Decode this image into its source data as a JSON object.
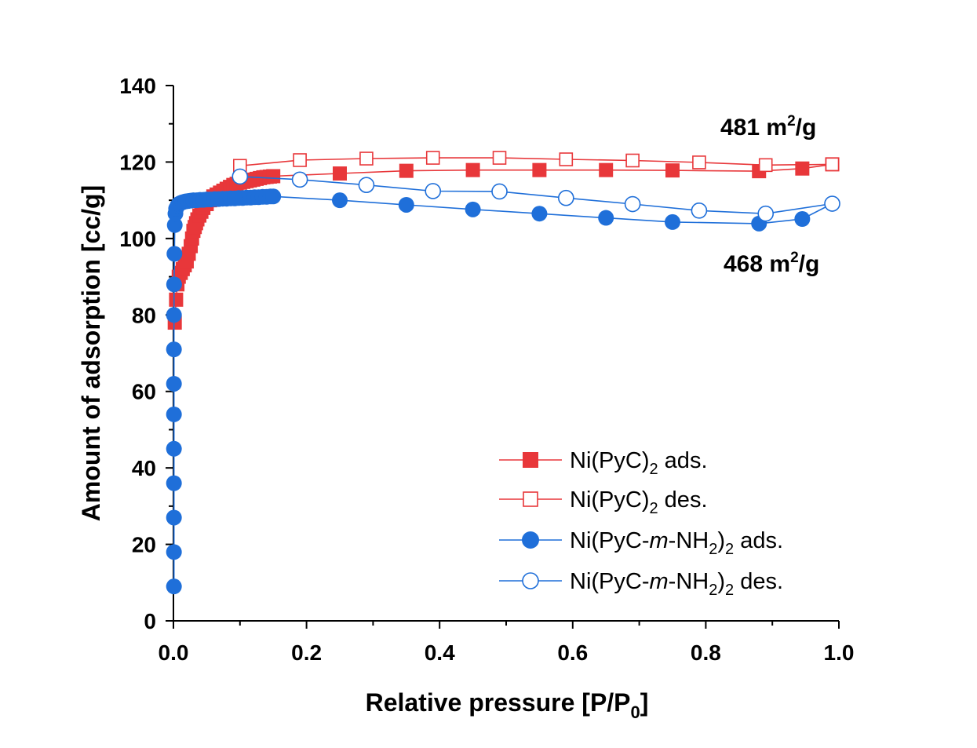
{
  "chart_data": {
    "type": "scatter",
    "xlabel": "Relative pressure [P/P0]",
    "ylabel": "Amount of adsorption [cc/g]",
    "xlim": [
      0.0,
      1.0
    ],
    "ylim": [
      0,
      140
    ],
    "x_ticks": [
      "0.0",
      "0.2",
      "0.4",
      "0.6",
      "0.8",
      "1.0"
    ],
    "y_ticks": [
      "0",
      "20",
      "40",
      "60",
      "80",
      "100",
      "120",
      "140"
    ],
    "grid": false,
    "legend_position": "bottom-right",
    "annotations": [
      {
        "text": "481 m2/g",
        "number": "481",
        "unit": "m",
        "sup": "2",
        "tail": "/g"
      },
      {
        "text": "468 m2/g",
        "number": "468",
        "unit": "m",
        "sup": "2",
        "tail": "/g"
      }
    ],
    "series": [
      {
        "name": "Ni(PyC)2 ads.",
        "legend": {
          "pre": "Ni(PyC)",
          "sub": "2",
          "post": " ads."
        },
        "marker": "square-filled",
        "color": "#E8373A",
        "x": [
          0.002,
          0.004,
          0.006,
          0.008,
          0.011,
          0.014,
          0.017,
          0.02,
          0.023,
          0.026,
          0.028,
          0.03,
          0.032,
          0.034,
          0.036,
          0.039,
          0.042,
          0.045,
          0.05,
          0.055,
          0.06,
          0.065,
          0.07,
          0.075,
          0.08,
          0.085,
          0.09,
          0.095,
          0.1,
          0.105,
          0.11,
          0.115,
          0.12,
          0.125,
          0.13,
          0.135,
          0.14,
          0.145,
          0.15,
          0.25,
          0.35,
          0.45,
          0.55,
          0.65,
          0.75,
          0.88,
          0.945,
          0.99
        ],
        "y": [
          78,
          84,
          88,
          90,
          91,
          92,
          93,
          94,
          96,
          98,
          100,
          102,
          103,
          104,
          105,
          106,
          107,
          108,
          109,
          110,
          111,
          111.5,
          112,
          112.5,
          113,
          113.5,
          114,
          114.3,
          114.6,
          114.8,
          115,
          115.2,
          115.4,
          115.6,
          115.8,
          116,
          116.1,
          116.2,
          116.3,
          117,
          117.7,
          117.9,
          117.9,
          117.9,
          117.8,
          117.6,
          118.3,
          119.4
        ]
      },
      {
        "name": "Ni(PyC)2 des.",
        "legend": {
          "pre": "Ni(PyC)",
          "sub": "2",
          "post": " des."
        },
        "marker": "square-open",
        "color": "#E8373A",
        "x": [
          0.99,
          0.89,
          0.79,
          0.69,
          0.59,
          0.49,
          0.39,
          0.29,
          0.19,
          0.1
        ],
        "y": [
          119.4,
          119.2,
          119.9,
          120.4,
          120.7,
          121.1,
          121.1,
          120.9,
          120.5,
          119
        ]
      },
      {
        "name": "Ni(PyC-m-NH2)2 ads.",
        "legend": {
          "pre": "Ni(PyC-",
          "ital": "m",
          "mid": "-NH",
          "sub1": "2",
          "mid2": ")",
          "sub2": "2",
          "post": " ads."
        },
        "marker": "circle-filled",
        "color": "#1F6FD9",
        "x": [
          0.0008,
          0.0008,
          0.0008,
          0.0008,
          0.0008,
          0.0008,
          0.0008,
          0.0008,
          0.0008,
          0.001,
          0.0015,
          0.002,
          0.003,
          0.004,
          0.006,
          0.008,
          0.011,
          0.014,
          0.018,
          0.022,
          0.026,
          0.03,
          0.035,
          0.04,
          0.045,
          0.05,
          0.056,
          0.062,
          0.068,
          0.074,
          0.08,
          0.086,
          0.092,
          0.098,
          0.104,
          0.11,
          0.116,
          0.122,
          0.128,
          0.134,
          0.14,
          0.146,
          0.15,
          0.25,
          0.35,
          0.45,
          0.55,
          0.65,
          0.75,
          0.88,
          0.945,
          0.99
        ],
        "y": [
          9,
          18,
          27,
          36,
          45,
          54,
          62,
          71,
          80,
          88,
          96,
          103.5,
          106.5,
          107.8,
          108.5,
          109,
          109.3,
          109.5,
          109.7,
          109.8,
          109.9,
          110,
          110,
          110.1,
          110.1,
          110.2,
          110.2,
          110.3,
          110.3,
          110.4,
          110.4,
          110.5,
          110.5,
          110.6,
          110.6,
          110.7,
          110.7,
          110.8,
          110.8,
          110.9,
          110.9,
          111,
          111,
          110,
          108.8,
          107.6,
          106.5,
          105.4,
          104.3,
          103.9,
          105.1,
          109.1
        ]
      },
      {
        "name": "Ni(PyC-m-NH2)2 des.",
        "legend": {
          "pre": "Ni(PyC-",
          "ital": "m",
          "mid": "-NH",
          "sub1": "2",
          "mid2": ")",
          "sub2": "2",
          "post": " des."
        },
        "marker": "circle-open",
        "color": "#1F6FD9",
        "x": [
          0.99,
          0.89,
          0.79,
          0.69,
          0.59,
          0.49,
          0.39,
          0.29,
          0.19,
          0.1
        ],
        "y": [
          109.1,
          106.5,
          107.3,
          109,
          110.6,
          112.3,
          112.4,
          114,
          115.4,
          116.2
        ]
      }
    ]
  }
}
